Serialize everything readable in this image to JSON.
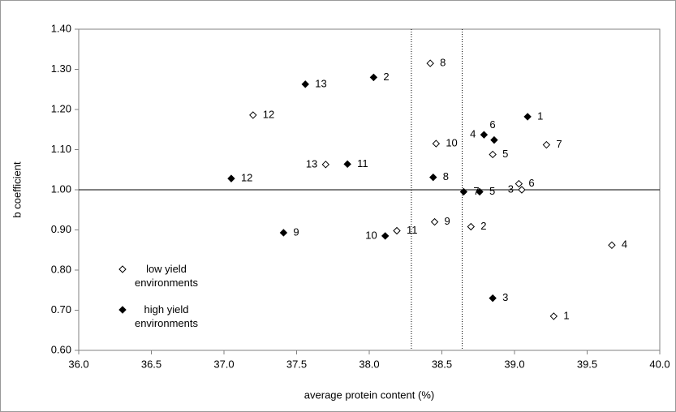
{
  "chart_data": {
    "type": "scatter",
    "x_label": "average protein content (%)",
    "y_label": "b coefficient",
    "xlim": [
      36.0,
      40.0
    ],
    "ylim": [
      0.6,
      1.4
    ],
    "xticks": [
      {
        "value": 36,
        "label": "36.0"
      },
      {
        "value": 36.5,
        "label": "36.5"
      },
      {
        "value": 37,
        "label": "37.0"
      },
      {
        "value": 37.5,
        "label": "37.5"
      },
      {
        "value": 38,
        "label": "38.0"
      },
      {
        "value": 38.5,
        "label": "38.5"
      },
      {
        "value": 39,
        "label": "39.0"
      },
      {
        "value": 39.5,
        "label": "39.5"
      },
      {
        "value": 40,
        "label": "40.0"
      }
    ],
    "yticks": [
      {
        "value": 0.6,
        "label": "0.60"
      },
      {
        "value": 0.7,
        "label": "0.70"
      },
      {
        "value": 0.8,
        "label": "0.80"
      },
      {
        "value": 0.9,
        "label": "0.90"
      },
      {
        "value": 1.0,
        "label": "1.00"
      },
      {
        "value": 1.1,
        "label": "1.10"
      },
      {
        "value": 1.2,
        "label": "1.20"
      },
      {
        "value": 1.3,
        "label": "1.30"
      },
      {
        "value": 1.4,
        "label": "1.40"
      }
    ],
    "hlines": [
      1.0
    ],
    "vlines": [
      38.29,
      38.64
    ],
    "series": [
      {
        "name": "low yield environments",
        "color": "#000000",
        "filled": false,
        "labels": [
          "1",
          "2",
          "3",
          "4",
          "5",
          "6",
          "7",
          "8",
          "9",
          "10",
          "11",
          "12",
          "13"
        ],
        "x": [
          39.27,
          38.7,
          39.05,
          39.67,
          38.85,
          39.03,
          39.22,
          38.42,
          38.45,
          38.46,
          38.19,
          37.2,
          37.7
        ],
        "values": [
          0.685,
          0.908,
          1.0,
          0.862,
          1.088,
          1.015,
          1.112,
          1.315,
          0.92,
          1.115,
          0.898,
          1.186,
          1.063
        ]
      },
      {
        "name": "high yield environments",
        "color": "#000000",
        "filled": true,
        "labels": [
          "1",
          "2",
          "3",
          "4",
          "5",
          "6",
          "7",
          "8",
          "9",
          "10",
          "11",
          "12",
          "13"
        ],
        "x": [
          39.09,
          38.03,
          38.85,
          38.79,
          38.76,
          38.86,
          38.65,
          38.44,
          37.41,
          38.11,
          37.85,
          37.05,
          37.56
        ],
        "values": [
          1.182,
          1.28,
          0.73,
          1.137,
          0.995,
          1.124,
          0.995,
          1.031,
          0.893,
          0.885,
          1.064,
          1.028,
          1.263
        ]
      }
    ]
  }
}
